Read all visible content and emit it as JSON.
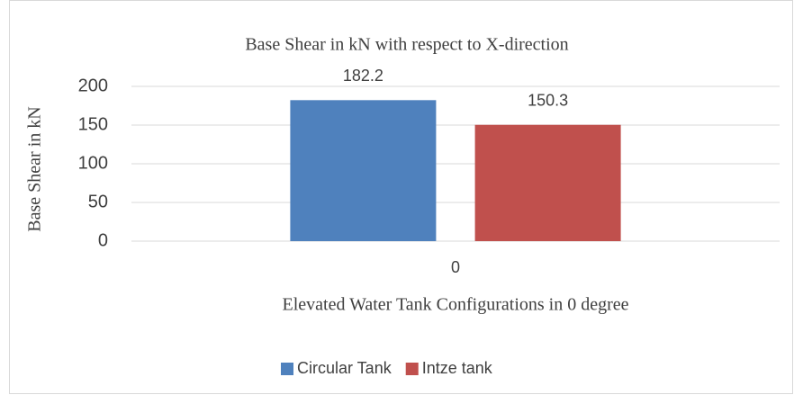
{
  "chart_data": {
    "type": "bar",
    "title": "Base Shear in kN with respect to X-direction",
    "x_label": "Elevated Water Tank Configurations in 0 degree",
    "y_label": "Base Shear in kN",
    "categories": [
      "0"
    ],
    "series": [
      {
        "name": "Circular Tank",
        "color": "#4f81bd",
        "values": [
          182.2
        ]
      },
      {
        "name": "Intze tank",
        "color": "#c0504d",
        "values": [
          150.3
        ]
      }
    ],
    "ylim": [
      0,
      200
    ],
    "yticks": [
      0,
      50,
      100,
      150,
      200
    ],
    "grid": true,
    "legend": "bottom"
  }
}
